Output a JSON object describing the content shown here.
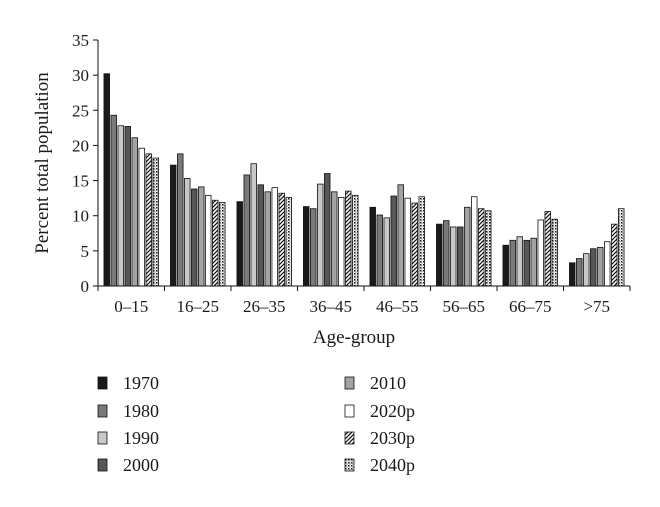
{
  "chart_data": {
    "type": "bar",
    "xlabel": "Age-group",
    "ylabel": "Percent total population",
    "ylim": [
      0,
      35
    ],
    "yticks": [
      0,
      5,
      10,
      15,
      20,
      25,
      30,
      35
    ],
    "grid": false,
    "legend_position": "bottom",
    "categories": [
      "0–15",
      "16–25",
      "26–35",
      "36–45",
      "46–55",
      "56–65",
      "66–75",
      ">75"
    ],
    "series": [
      {
        "name": "1970",
        "values": [
          30.2,
          17.2,
          12.0,
          11.3,
          11.2,
          8.8,
          5.8,
          3.3
        ],
        "fill": "#1a1a1a",
        "pattern": "solid"
      },
      {
        "name": "1980",
        "values": [
          24.3,
          18.8,
          15.8,
          11.0,
          10.1,
          9.3,
          6.5,
          3.9
        ],
        "fill": "#7a7a7a",
        "pattern": "solid"
      },
      {
        "name": "1990",
        "values": [
          22.8,
          15.3,
          17.4,
          14.5,
          9.7,
          8.4,
          7.0,
          4.6
        ],
        "fill": "#c8c8c8",
        "pattern": "solid"
      },
      {
        "name": "2000",
        "values": [
          22.7,
          13.8,
          14.4,
          16.0,
          12.8,
          8.4,
          6.5,
          5.3
        ],
        "fill": "#575757",
        "pattern": "solid"
      },
      {
        "name": "2010",
        "values": [
          21.1,
          14.1,
          13.4,
          13.4,
          14.4,
          11.2,
          6.8,
          5.5
        ],
        "fill": "#a3a3a3",
        "pattern": "solid"
      },
      {
        "name": "2020p",
        "values": [
          19.6,
          12.9,
          14.0,
          12.6,
          12.5,
          12.7,
          9.4,
          6.3
        ],
        "fill": "#ffffff",
        "pattern": "hollow"
      },
      {
        "name": "2030p",
        "values": [
          18.8,
          12.2,
          13.2,
          13.5,
          11.8,
          11.0,
          10.6,
          8.8
        ],
        "fill": "#ffffff",
        "pattern": "diagonal"
      },
      {
        "name": "2040p",
        "values": [
          18.2,
          11.9,
          12.6,
          12.9,
          12.7,
          10.7,
          9.5,
          11.0
        ],
        "fill": "#ffffff",
        "pattern": "dots"
      }
    ]
  }
}
